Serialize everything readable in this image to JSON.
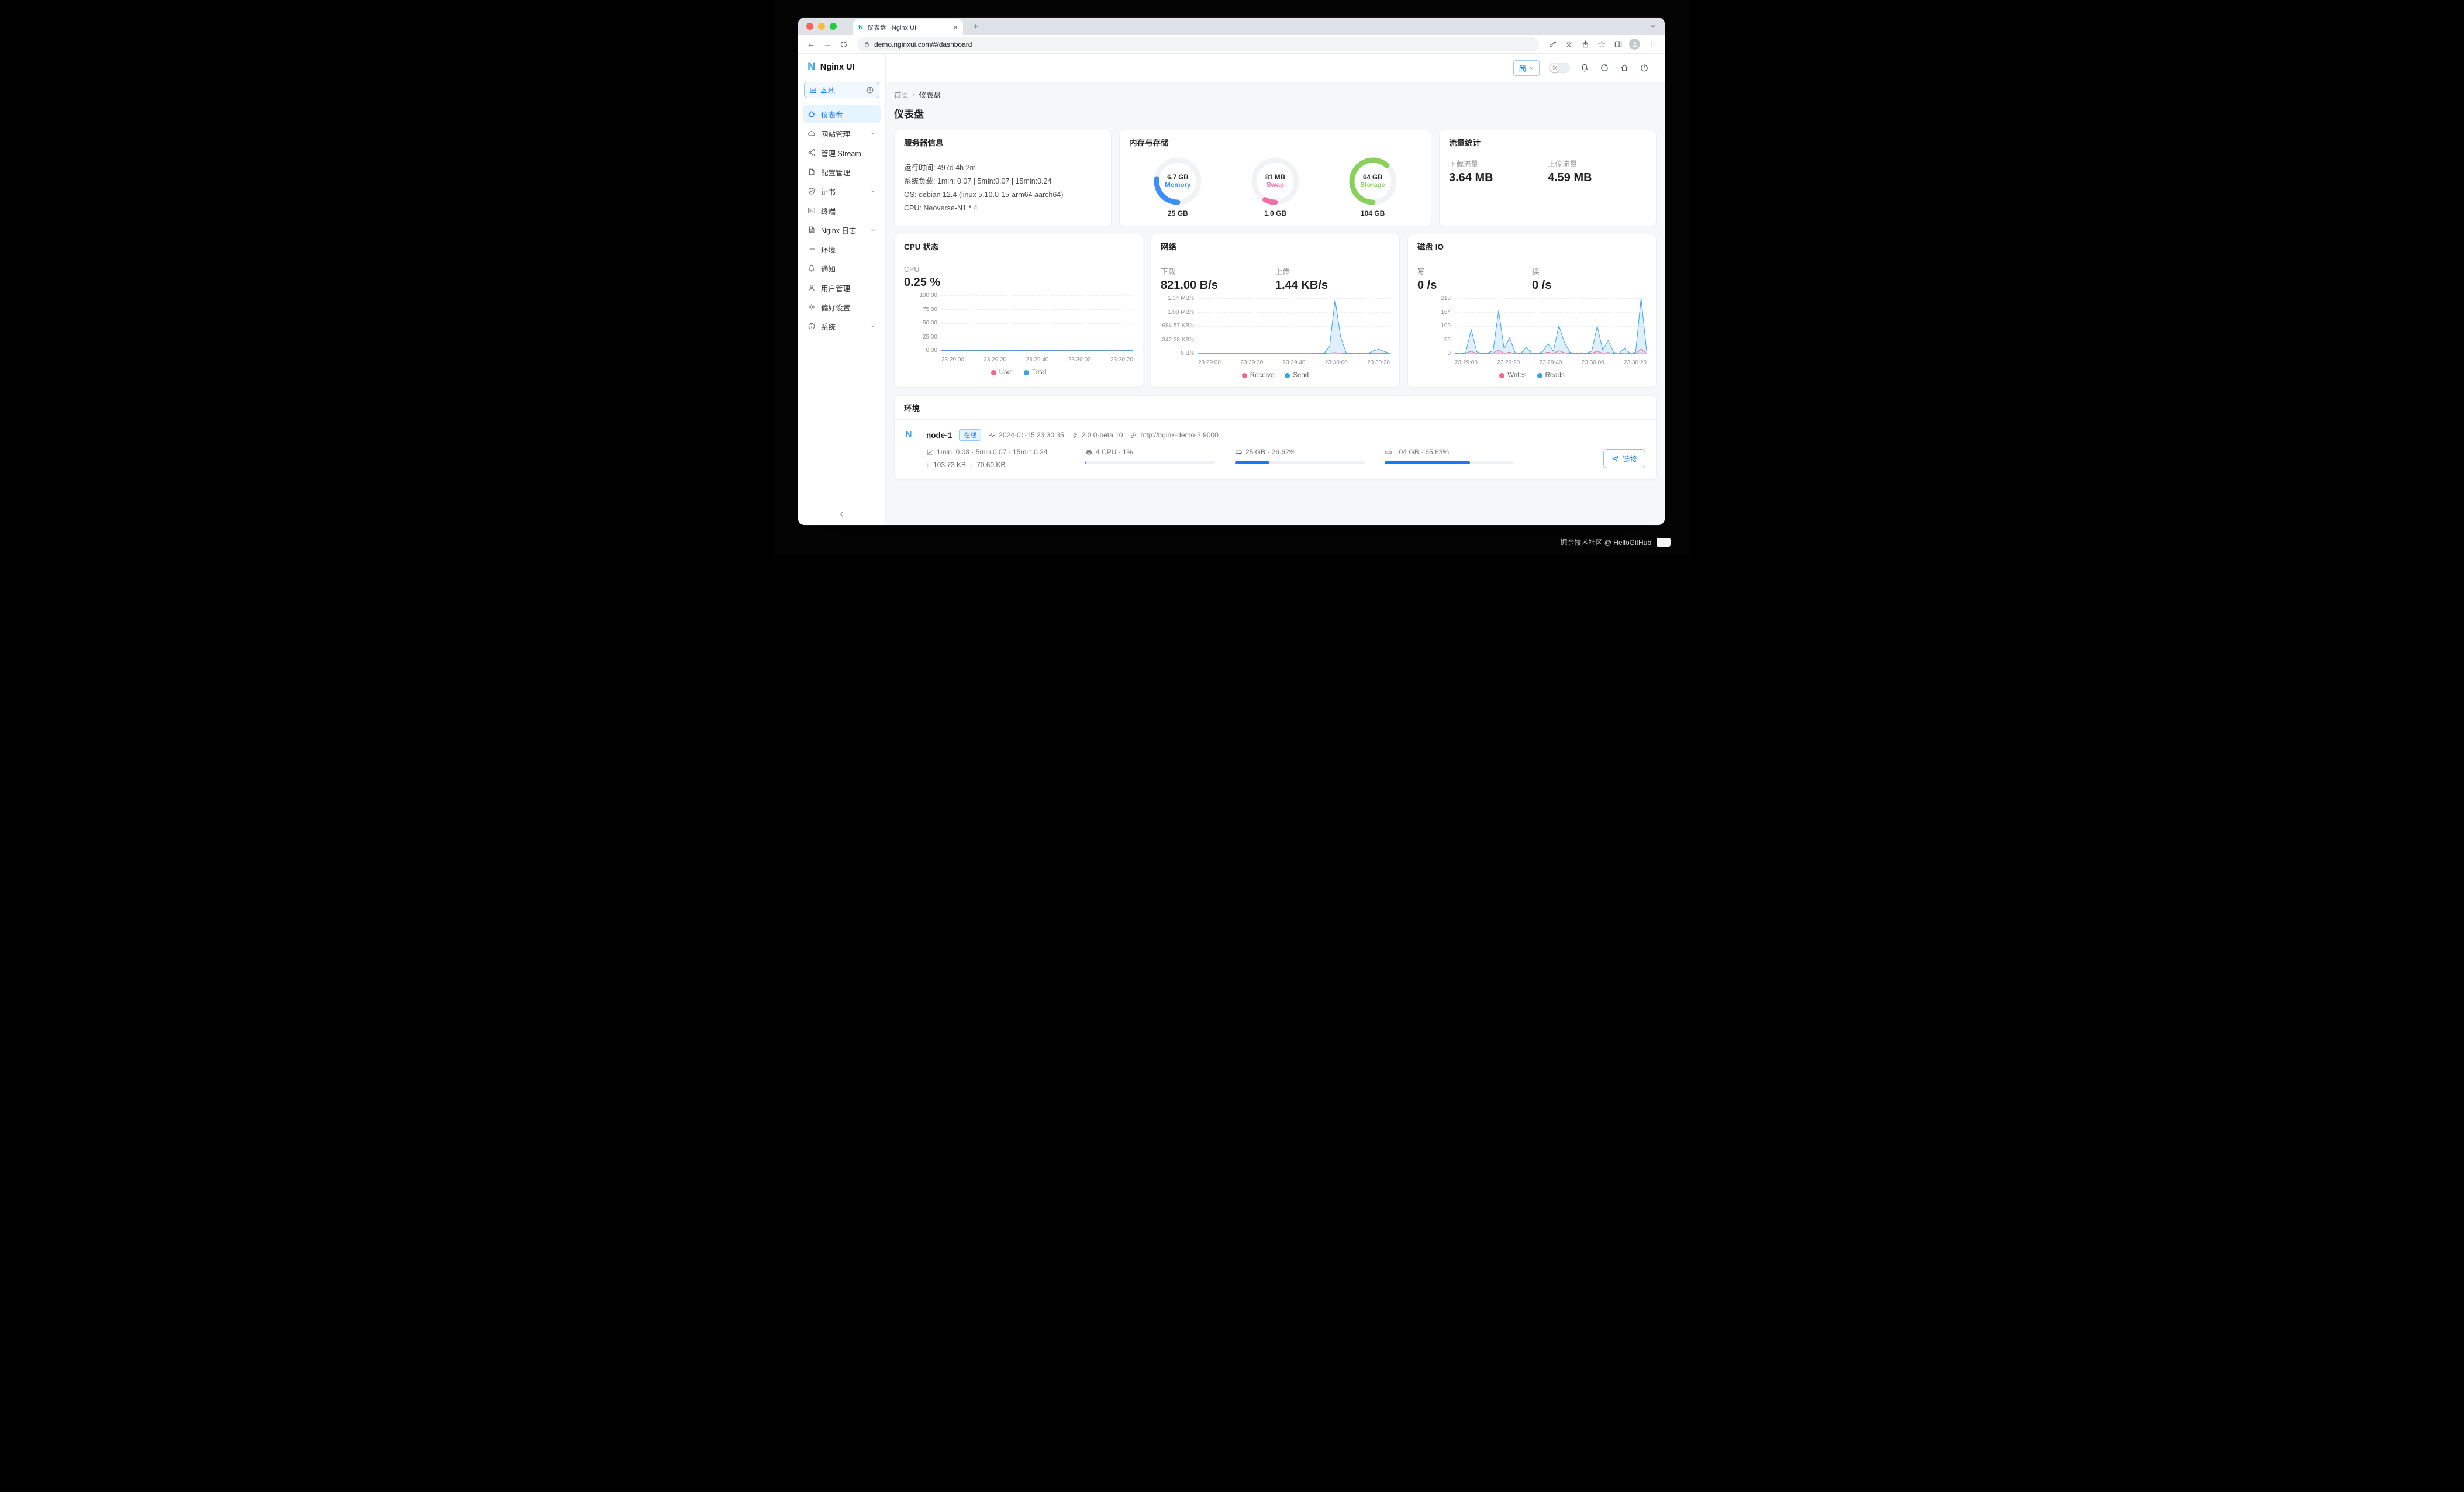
{
  "browser": {
    "tab_title": "仪表盘 | Nginx UI",
    "url": "demo.nginxui.com/#/dashboard"
  },
  "brand": {
    "name": "Nginx UI",
    "letter": "N"
  },
  "theme": {
    "accent": "#1677ff"
  },
  "sidebar": {
    "env_switch": "本地",
    "items": [
      {
        "label": "仪表盘"
      },
      {
        "label": "网站管理"
      },
      {
        "label": "管理 Stream"
      },
      {
        "label": "配置管理"
      },
      {
        "label": "证书"
      },
      {
        "label": "终端"
      },
      {
        "label": "Nginx 日志"
      },
      {
        "label": "环境"
      },
      {
        "label": "通知"
      },
      {
        "label": "用户管理"
      },
      {
        "label": "偏好设置"
      },
      {
        "label": "系统"
      }
    ]
  },
  "header": {
    "lang": "简",
    "breadcrumb": [
      "首页",
      "仪表盘"
    ],
    "breadcrumb_sep": "/",
    "page_title": "仪表盘"
  },
  "cards": {
    "server_info": {
      "title": "服务器信息",
      "lines": [
        "运行时间: 497d 4h 2m",
        "系统负载: 1min: 0.07 | 5min:0.07 | 15min:0.24",
        "OS: debian 12.4 (linux 5.10.0-15-arm64 aarch64)",
        "CPU: Neoverse-N1 * 4"
      ]
    },
    "memory_storage": {
      "title": "内存与存储",
      "gauges": [
        {
          "value": "6.7 GB",
          "label": "Memory",
          "total": "25 GB",
          "percent": 26.8,
          "color": "#3e8ef7"
        },
        {
          "value": "81 MB",
          "label": "Swap",
          "total": "1.0 GB",
          "percent": 8,
          "color": "#f06fa7"
        },
        {
          "value": "64 GB",
          "label": "Storage",
          "total": "104 GB",
          "percent": 61.5,
          "color": "#88d15a"
        }
      ]
    },
    "traffic": {
      "title": "流量统计",
      "items": [
        {
          "label": "下载流量",
          "value": "3.64 MB"
        },
        {
          "label": "上传流量",
          "value": "4.59 MB"
        }
      ]
    },
    "cpu": {
      "title": "CPU 状态",
      "stats": [
        {
          "label": "CPU",
          "value": "0.25 %"
        }
      ]
    },
    "network": {
      "title": "网络",
      "stats": [
        {
          "label": "下载",
          "value": "821.00 B/s"
        },
        {
          "label": "上传",
          "value": "1.44 KB/s"
        }
      ]
    },
    "disk": {
      "title": "磁盘 IO",
      "stats": [
        {
          "label": "写",
          "value": "0 /s"
        },
        {
          "label": "读",
          "value": "0 /s"
        }
      ]
    },
    "environments": {
      "title": "环境",
      "node": {
        "name": "node-1",
        "status": "在线",
        "time": "2024-01-15 23:30:35",
        "version": "2.0.0-beta.10",
        "url": "http://nginx-demo-2:9000",
        "load": "1min: 0.08 · 5min:0.07 · 15min:0.24",
        "net_up": "103.73 KB",
        "net_down": "70.60 KB",
        "cpu": {
          "text": "4 CPU · 1%",
          "percent": 1
        },
        "mem": {
          "text": "25 GB · 26.62%",
          "percent": 26.62
        },
        "disk": {
          "text": "104 GB · 65.63%",
          "percent": 65.63
        },
        "link_label": "链接"
      }
    }
  },
  "footer": {
    "credit": "掘金技术社区 @ HelloGitHub"
  },
  "chart_data": [
    {
      "id": "cpu",
      "type": "line",
      "title": "CPU 状态",
      "x_ticks": [
        "23:29:00",
        "23:29:20",
        "23:29:40",
        "23:30:00",
        "23:30:20"
      ],
      "y_ticks": [
        "100.00",
        "75.00",
        "50.00",
        "25.00",
        "0.00"
      ],
      "y_max": 100,
      "y_unit": "%",
      "series": [
        {
          "name": "User",
          "color": "#FF6384",
          "values": [
            0.4,
            0.3,
            0.5,
            0.3,
            0.4,
            0.6,
            0.3,
            0.4,
            0.3,
            0.5,
            0.4,
            0.3,
            0.6,
            0.4,
            0.3,
            0.5,
            0.4,
            0.6,
            0.3,
            0.4,
            0.5,
            0.3,
            0.4,
            0.3,
            0.6,
            0.4,
            0.5,
            0.3,
            0.4,
            0.5,
            0.3,
            0.4,
            0.6,
            0.3,
            0.4,
            0.3
          ]
        },
        {
          "name": "Total",
          "color": "#36A2EB",
          "values": [
            0.8,
            0.7,
            0.9,
            0.8,
            1.0,
            0.9,
            0.7,
            0.8,
            0.9,
            1.1,
            0.8,
            0.7,
            1.0,
            0.8,
            0.7,
            0.9,
            0.8,
            1.2,
            0.7,
            0.8,
            0.9,
            0.7,
            1.0,
            0.8,
            1.1,
            0.9,
            0.8,
            0.7,
            0.9,
            1.0,
            0.7,
            0.8,
            1.2,
            0.7,
            0.9,
            0.8
          ]
        }
      ]
    },
    {
      "id": "network",
      "type": "area",
      "title": "网络",
      "x_ticks": [
        "23:29:00",
        "23:29:20",
        "23:29:40",
        "23:30:00",
        "23:30:20"
      ],
      "y_ticks": [
        "1.34 MB/s",
        "1.00 MB/s",
        "684.57 KB/s",
        "342.28 KB/s",
        "0 B/s"
      ],
      "y_max": 1372,
      "y_unit": "KB/s",
      "series": [
        {
          "name": "Receive",
          "color": "#FF6384",
          "values": [
            2,
            1,
            2,
            1,
            2,
            1,
            2,
            1,
            1,
            2,
            1,
            2,
            1,
            1,
            2,
            1,
            2,
            1,
            1,
            2,
            1,
            2,
            3,
            6,
            20,
            28,
            14,
            5,
            2,
            1,
            2,
            4,
            10,
            14,
            7,
            2
          ]
        },
        {
          "name": "Send",
          "color": "#36A2EB",
          "values": [
            1,
            1,
            2,
            1,
            1,
            2,
            1,
            1,
            1,
            2,
            1,
            1,
            2,
            1,
            1,
            1,
            2,
            1,
            1,
            1,
            2,
            3,
            5,
            12,
            180,
            1340,
            420,
            30,
            6,
            3,
            2,
            6,
            75,
            110,
            55,
            8
          ]
        }
      ]
    },
    {
      "id": "disk",
      "type": "area",
      "title": "磁盘 IO",
      "x_ticks": [
        "23:29:00",
        "23:29:20",
        "23:29:40",
        "23:30:00",
        "23:30:20"
      ],
      "y_ticks": [
        "218",
        "164",
        "109",
        "55",
        "0"
      ],
      "y_max": 218,
      "y_unit": "/s",
      "series": [
        {
          "name": "Writes",
          "color": "#FF6384",
          "values": [
            0,
            0,
            2,
            10,
            0,
            0,
            1,
            3,
            15,
            2,
            6,
            0,
            0,
            3,
            1,
            0,
            2,
            6,
            2,
            12,
            4,
            1,
            0,
            1,
            0,
            2,
            10,
            2,
            5,
            1,
            0,
            3,
            0,
            1,
            18,
            2
          ]
        },
        {
          "name": "Reads",
          "color": "#36A2EB",
          "values": [
            2,
            0,
            5,
            95,
            8,
            0,
            3,
            12,
            170,
            20,
            62,
            5,
            0,
            25,
            4,
            0,
            8,
            40,
            10,
            110,
            45,
            6,
            0,
            4,
            2,
            10,
            108,
            15,
            52,
            5,
            3,
            20,
            2,
            6,
            218,
            12
          ]
        }
      ]
    }
  ]
}
